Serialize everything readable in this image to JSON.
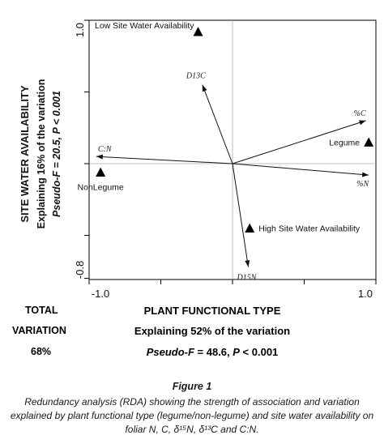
{
  "chart_data": {
    "type": "scatter",
    "subtype": "rda-biplot",
    "xlim": [
      -1.0,
      1.0
    ],
    "ylim": [
      -0.8,
      1.0
    ],
    "x_ticks": [
      "-1.0",
      "1.0"
    ],
    "y_ticks": [
      "1.0",
      "-0.8"
    ],
    "x_axis": {
      "title": "PLANT FUNCTIONAL TYPE",
      "subtitle_prefix": "Explaining ",
      "subtitle_value": "52%",
      "subtitle_suffix": " of the variation",
      "stat_label": "Pseudo-F",
      "stat_value": " = 48.6, ",
      "p_label": "P",
      "p_value": " < 0.001"
    },
    "y_axis": {
      "title": "SITE WATER AVAILABILITY",
      "subtitle_prefix": "Explaining ",
      "subtitle_value": "16%",
      "subtitle_suffix": " of the variation",
      "stat": "Pseudo-F = 20.5, P < 0.001"
    },
    "arrows": [
      {
        "label": "D13C",
        "x": -0.21,
        "y": 0.55
      },
      {
        "label": "%C",
        "x": 0.93,
        "y": 0.3
      },
      {
        "label": "C:N",
        "x": -0.95,
        "y": 0.05
      },
      {
        "label": "%N",
        "x": 0.95,
        "y": -0.08
      },
      {
        "label": "D15N",
        "x": 0.11,
        "y": -0.72
      }
    ],
    "points": [
      {
        "label": "Low Site Water Availability",
        "x": -0.24,
        "y": 0.92
      },
      {
        "label": "Legume",
        "x": 0.95,
        "y": 0.15
      },
      {
        "label": "NonLegume",
        "x": -0.92,
        "y": -0.06
      },
      {
        "label": "High Site Water Availability",
        "x": 0.12,
        "y": -0.45
      }
    ],
    "point_label_positions": [
      "inside-left",
      "left",
      "below",
      "right"
    ]
  },
  "total": {
    "line1": "TOTAL",
    "line2": "VARIATION",
    "line3": "68%"
  },
  "figure_title": "Figure 1",
  "caption": "Redundancy analysis (RDA) showing the strength of association and variation explained by plant functional type (legume/non-legume) and site water availability on foliar N, C, δ¹⁵N, δ¹³C and C:N."
}
